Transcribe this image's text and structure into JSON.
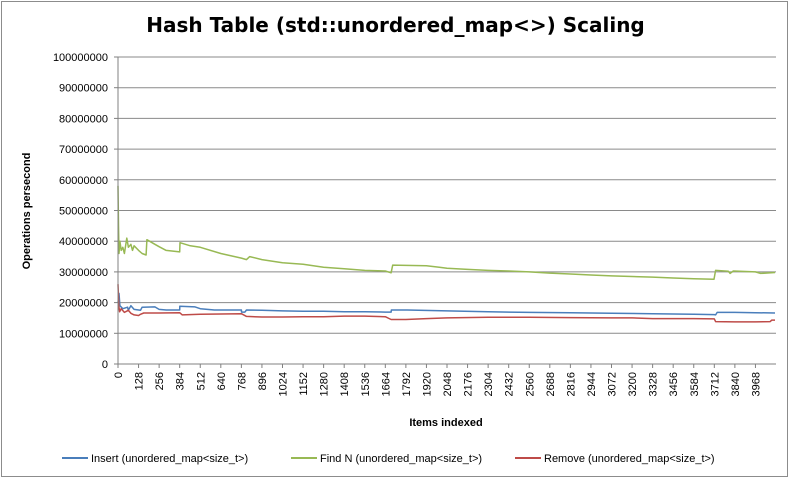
{
  "chart_data": {
    "type": "line",
    "title": "Hash Table (std::unordered_map<>) Scaling",
    "xlabel": "Items indexed",
    "ylabel": "Operations persecond",
    "xlim": [
      0,
      4096
    ],
    "ylim": [
      0,
      100000000
    ],
    "y_ticks": [
      0,
      10000000,
      20000000,
      30000000,
      40000000,
      50000000,
      60000000,
      70000000,
      80000000,
      90000000,
      100000000
    ],
    "x_ticks": [
      0,
      128,
      256,
      384,
      512,
      640,
      768,
      896,
      1024,
      1152,
      1280,
      1408,
      1536,
      1664,
      1792,
      1920,
      2048,
      2176,
      2304,
      2432,
      2560,
      2688,
      2816,
      2944,
      3072,
      3200,
      3328,
      3456,
      3584,
      3712,
      3840,
      3968
    ],
    "grid": "horizontal",
    "legend_position": "bottom",
    "series": [
      {
        "name": "Insert (unordered_map<size_t>)",
        "color": "#4a7ebb",
        "points": [
          [
            0,
            20000000
          ],
          [
            6,
            23000000
          ],
          [
            12,
            19000000
          ],
          [
            30,
            18000000
          ],
          [
            60,
            18500000
          ],
          [
            64,
            17500000
          ],
          [
            80,
            19000000
          ],
          [
            100,
            17800000
          ],
          [
            140,
            17500000
          ],
          [
            150,
            18500000
          ],
          [
            230,
            18600000
          ],
          [
            256,
            17800000
          ],
          [
            300,
            17600000
          ],
          [
            384,
            17600000
          ],
          [
            385,
            18800000
          ],
          [
            480,
            18600000
          ],
          [
            512,
            18000000
          ],
          [
            600,
            17600000
          ],
          [
            768,
            17600000
          ],
          [
            769,
            16900000
          ],
          [
            790,
            16900000
          ],
          [
            800,
            17600000
          ],
          [
            896,
            17500000
          ],
          [
            1024,
            17300000
          ],
          [
            1152,
            17200000
          ],
          [
            1280,
            17200000
          ],
          [
            1408,
            17000000
          ],
          [
            1536,
            17000000
          ],
          [
            1664,
            16900000
          ],
          [
            1700,
            16900000
          ],
          [
            1702,
            17600000
          ],
          [
            1800,
            17600000
          ],
          [
            2048,
            17300000
          ],
          [
            2304,
            17000000
          ],
          [
            2560,
            16800000
          ],
          [
            2816,
            16700000
          ],
          [
            3072,
            16500000
          ],
          [
            3328,
            16400000
          ],
          [
            3584,
            16200000
          ],
          [
            3712,
            16100000
          ],
          [
            3720,
            16000000
          ],
          [
            3730,
            16800000
          ],
          [
            3840,
            16800000
          ],
          [
            3968,
            16700000
          ],
          [
            4090,
            16600000
          ]
        ]
      },
      {
        "name": "Find N (unordered_map<size_t>)",
        "color": "#98b954",
        "points": [
          [
            0,
            58000000
          ],
          [
            3,
            45000000
          ],
          [
            6,
            36000000
          ],
          [
            12,
            40000000
          ],
          [
            20,
            37000000
          ],
          [
            30,
            38000000
          ],
          [
            40,
            36000000
          ],
          [
            55,
            41000000
          ],
          [
            65,
            38000000
          ],
          [
            80,
            39000000
          ],
          [
            90,
            37000000
          ],
          [
            100,
            38500000
          ],
          [
            128,
            37000000
          ],
          [
            150,
            36000000
          ],
          [
            175,
            35500000
          ],
          [
            180,
            40500000
          ],
          [
            230,
            39000000
          ],
          [
            256,
            38200000
          ],
          [
            300,
            37000000
          ],
          [
            384,
            36500000
          ],
          [
            386,
            39500000
          ],
          [
            450,
            38500000
          ],
          [
            512,
            38000000
          ],
          [
            640,
            36000000
          ],
          [
            768,
            34500000
          ],
          [
            800,
            34000000
          ],
          [
            820,
            35000000
          ],
          [
            896,
            34000000
          ],
          [
            1024,
            33000000
          ],
          [
            1152,
            32500000
          ],
          [
            1280,
            31500000
          ],
          [
            1408,
            31000000
          ],
          [
            1536,
            30500000
          ],
          [
            1664,
            30300000
          ],
          [
            1700,
            29700000
          ],
          [
            1710,
            32200000
          ],
          [
            1920,
            32000000
          ],
          [
            2000,
            31500000
          ],
          [
            2048,
            31200000
          ],
          [
            2176,
            30800000
          ],
          [
            2304,
            30500000
          ],
          [
            2432,
            30300000
          ],
          [
            2560,
            30000000
          ],
          [
            2688,
            29600000
          ],
          [
            2816,
            29300000
          ],
          [
            2944,
            29000000
          ],
          [
            3072,
            28700000
          ],
          [
            3200,
            28500000
          ],
          [
            3328,
            28300000
          ],
          [
            3456,
            28000000
          ],
          [
            3584,
            27800000
          ],
          [
            3710,
            27600000
          ],
          [
            3720,
            30500000
          ],
          [
            3800,
            30200000
          ],
          [
            3810,
            29500000
          ],
          [
            3830,
            30300000
          ],
          [
            3968,
            30000000
          ],
          [
            4000,
            29500000
          ],
          [
            4090,
            29800000
          ]
        ]
      },
      {
        "name": "Remove (unordered_map<size_t>)",
        "color": "#be4b48",
        "points": [
          [
            0,
            26000000
          ],
          [
            5,
            19000000
          ],
          [
            10,
            17000000
          ],
          [
            20,
            18000000
          ],
          [
            40,
            16800000
          ],
          [
            64,
            17500000
          ],
          [
            80,
            16500000
          ],
          [
            100,
            16000000
          ],
          [
            128,
            15800000
          ],
          [
            140,
            16200000
          ],
          [
            160,
            16600000
          ],
          [
            256,
            16600000
          ],
          [
            384,
            16700000
          ],
          [
            400,
            16000000
          ],
          [
            512,
            16200000
          ],
          [
            640,
            16300000
          ],
          [
            768,
            16400000
          ],
          [
            800,
            15500000
          ],
          [
            896,
            15300000
          ],
          [
            1024,
            15300000
          ],
          [
            1152,
            15400000
          ],
          [
            1280,
            15400000
          ],
          [
            1408,
            15600000
          ],
          [
            1536,
            15600000
          ],
          [
            1664,
            15400000
          ],
          [
            1700,
            14500000
          ],
          [
            1792,
            14500000
          ],
          [
            1920,
            14800000
          ],
          [
            2048,
            15000000
          ],
          [
            2304,
            15200000
          ],
          [
            2560,
            15200000
          ],
          [
            2816,
            15100000
          ],
          [
            3072,
            15000000
          ],
          [
            3200,
            15000000
          ],
          [
            3328,
            14800000
          ],
          [
            3456,
            14800000
          ],
          [
            3584,
            14800000
          ],
          [
            3712,
            14700000
          ],
          [
            3720,
            13800000
          ],
          [
            3840,
            13700000
          ],
          [
            3968,
            13700000
          ],
          [
            4060,
            13800000
          ],
          [
            4070,
            14300000
          ],
          [
            4090,
            14300000
          ]
        ]
      }
    ]
  }
}
